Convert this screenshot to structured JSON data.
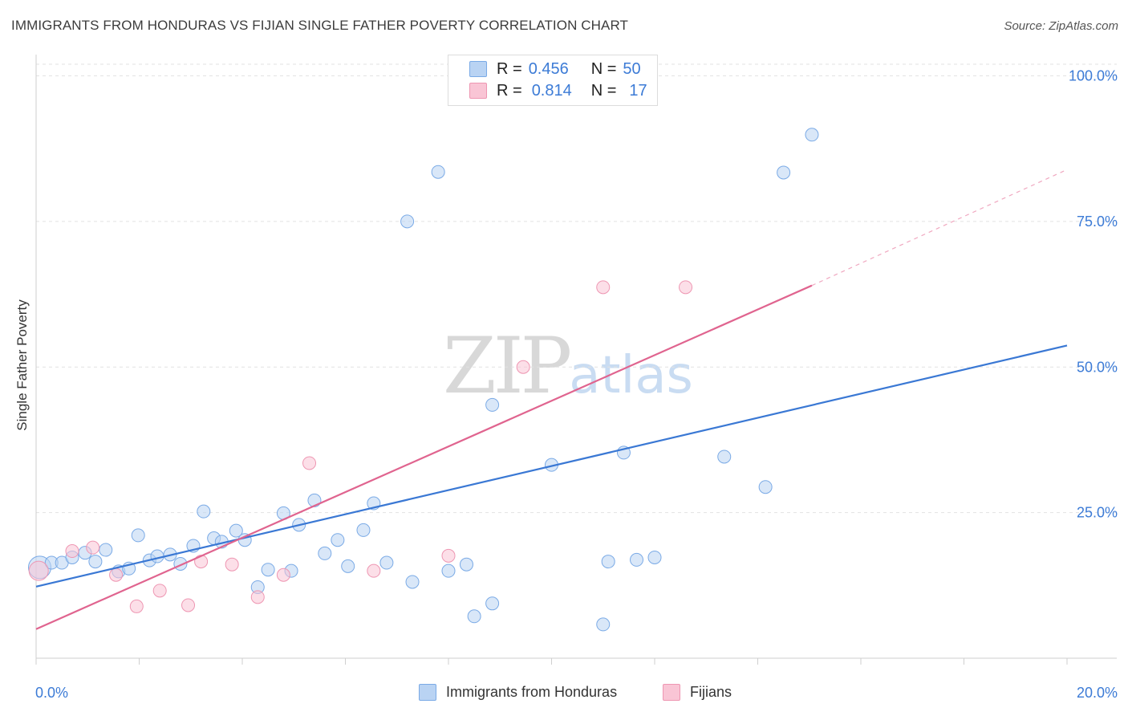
{
  "title": "IMMIGRANTS FROM HONDURAS VS FIJIAN SINGLE FATHER POVERTY CORRELATION CHART",
  "source": "Source: ZipAtlas.com",
  "watermark": {
    "zip": "ZIP",
    "atlas": "atlas"
  },
  "legend": {
    "r_label": "R =",
    "n_label": "N =",
    "series": [
      {
        "r": "0.456",
        "n": "50",
        "fill": "#b9d3f3",
        "stroke": "#7aaae6"
      },
      {
        "r": "0.814",
        "n": "17",
        "fill": "#f9c5d5",
        "stroke": "#ee96b2"
      }
    ]
  },
  "chart_data": {
    "type": "scatter",
    "title": "IMMIGRANTS FROM HONDURAS VS FIJIAN SINGLE FATHER POVERTY CORRELATION CHART",
    "xlabel": "",
    "ylabel": "Single Father Poverty",
    "xlim": [
      0,
      20
    ],
    "ylim": [
      0,
      102
    ],
    "x_tick_labels": [
      "0.0%",
      "20.0%"
    ],
    "y_ticks": [
      25,
      50,
      75,
      100
    ],
    "y_tick_labels": [
      "25.0%",
      "50.0%",
      "75.0%",
      "100.0%"
    ],
    "grid": true,
    "series": [
      {
        "name": "Immigrants from Honduras",
        "color": "#3a78d4",
        "fill": "#b9d3f3",
        "trend": {
          "x0": 0,
          "y0": 12.3,
          "x1": 20,
          "y1": 53.7
        },
        "points": [
          [
            0.07,
            15.6
          ],
          [
            0.3,
            16.4
          ],
          [
            0.5,
            16.4
          ],
          [
            0.7,
            17.3
          ],
          [
            0.95,
            18.1
          ],
          [
            1.15,
            16.6
          ],
          [
            1.35,
            18.6
          ],
          [
            1.6,
            14.9
          ],
          [
            1.8,
            15.4
          ],
          [
            1.98,
            21.1
          ],
          [
            2.2,
            16.8
          ],
          [
            2.35,
            17.5
          ],
          [
            2.6,
            17.8
          ],
          [
            2.8,
            16.2
          ],
          [
            3.05,
            19.3
          ],
          [
            3.25,
            25.2
          ],
          [
            3.45,
            20.6
          ],
          [
            3.6,
            20.0
          ],
          [
            3.88,
            21.9
          ],
          [
            4.05,
            20.3
          ],
          [
            4.3,
            12.2
          ],
          [
            4.5,
            15.2
          ],
          [
            4.8,
            24.9
          ],
          [
            4.95,
            15.0
          ],
          [
            5.1,
            22.9
          ],
          [
            5.4,
            27.1
          ],
          [
            5.6,
            18.0
          ],
          [
            5.85,
            20.3
          ],
          [
            6.05,
            15.8
          ],
          [
            6.35,
            22.0
          ],
          [
            6.55,
            26.6
          ],
          [
            6.8,
            16.4
          ],
          [
            7.2,
            75.0
          ],
          [
            7.3,
            13.1
          ],
          [
            7.8,
            83.5
          ],
          [
            8.0,
            15.0
          ],
          [
            8.35,
            16.1
          ],
          [
            8.5,
            7.2
          ],
          [
            8.85,
            43.5
          ],
          [
            8.85,
            9.4
          ],
          [
            10.0,
            33.2
          ],
          [
            11.0,
            5.8
          ],
          [
            11.1,
            16.6
          ],
          [
            11.4,
            35.3
          ],
          [
            11.65,
            16.9
          ],
          [
            12.0,
            17.3
          ],
          [
            13.35,
            34.6
          ],
          [
            14.15,
            29.4
          ],
          [
            14.5,
            83.4
          ],
          [
            15.05,
            89.9
          ]
        ]
      },
      {
        "name": "Fijians",
        "color": "#e0648f",
        "fill": "#f9c5d5",
        "trend": {
          "x0": 0,
          "y0": 5.0,
          "x1": 15.05,
          "y1": 64.0
        },
        "trend_dashed": {
          "x0": 15.05,
          "y0": 64.0,
          "x1": 20,
          "y1": 83.9
        },
        "points": [
          [
            0.05,
            15.0
          ],
          [
            0.7,
            18.4
          ],
          [
            1.1,
            19.0
          ],
          [
            1.55,
            14.3
          ],
          [
            1.95,
            8.9
          ],
          [
            2.4,
            11.6
          ],
          [
            2.95,
            9.1
          ],
          [
            3.2,
            16.6
          ],
          [
            3.8,
            16.1
          ],
          [
            4.3,
            10.5
          ],
          [
            4.8,
            14.3
          ],
          [
            5.3,
            33.5
          ],
          [
            6.55,
            15.0
          ],
          [
            8.0,
            17.6
          ],
          [
            9.45,
            50.0
          ],
          [
            11.0,
            63.7
          ],
          [
            12.6,
            63.7
          ]
        ]
      }
    ]
  }
}
